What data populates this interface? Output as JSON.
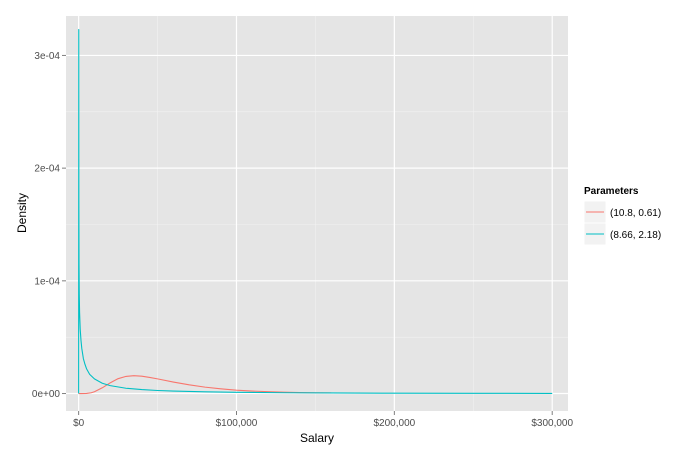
{
  "chart_data": {
    "type": "line",
    "title": "",
    "xlabel": "Salary",
    "ylabel": "Density",
    "xlim": [
      -8000,
      310000
    ],
    "ylim": [
      -1.55e-05,
      0.000335
    ],
    "x_ticks": [
      0,
      100000,
      200000,
      300000
    ],
    "x_tick_labels": [
      "$0",
      "$100,000",
      "$200,000",
      "$300,000"
    ],
    "x_minor_ticks": [
      50000,
      150000,
      250000
    ],
    "y_ticks": [
      0,
      0.0001,
      0.0002,
      0.0003
    ],
    "y_tick_labels": [
      "0e+00",
      "1e-04",
      "2e-04",
      "3e-04"
    ],
    "y_minor_ticks": [
      5e-05,
      0.00015,
      0.00025
    ],
    "grid": true,
    "legend": {
      "title": "Parameters",
      "position": "right"
    },
    "series": [
      {
        "name": "(10.8, 0.61)",
        "color": "#F8766D",
        "x": [
          0,
          2000,
          5000,
          8000,
          10000,
          15000,
          20000,
          25000,
          30000,
          35000,
          40000,
          45000,
          50000,
          60000,
          70000,
          80000,
          90000,
          100000,
          110000,
          120000,
          130000,
          140000,
          150000,
          160000
        ],
        "y": [
          0,
          1e-08,
          1e-07,
          7e-07,
          1.6e-06,
          5.1e-06,
          9.5e-06,
          1.32e-05,
          1.52e-05,
          1.58e-05,
          1.54e-05,
          1.43e-05,
          1.3e-05,
          1.02e-05,
          7.7e-06,
          5.7e-06,
          4.2e-06,
          3e-06,
          2.2e-06,
          1.6e-06,
          1.2e-06,
          9e-07,
          6e-07,
          5e-07
        ]
      },
      {
        "name": "(8.66, 2.18)",
        "color": "#00BFC4",
        "x": [
          0,
          80,
          150,
          250,
          400,
          600,
          1000,
          1500,
          2000,
          3000,
          4000,
          5000,
          7000,
          10000,
          15000,
          20000,
          30000,
          40000,
          50000,
          60000,
          80000,
          100000,
          130000,
          160000,
          200000,
          250000,
          300000
        ],
        "y": [
          0,
          0.000323,
          0.00017,
          0.000115,
          8.8e-05,
          7.2e-05,
          5.7e-05,
          4.7e-05,
          4e-05,
          3.1e-05,
          2.6e-05,
          2.2e-05,
          1.7e-05,
          1.3e-05,
          9.1e-06,
          7e-06,
          4.7e-06,
          3.5e-06,
          2.7e-06,
          2.2e-06,
          1.5e-06,
          1.1e-06,
          7e-07,
          5e-07,
          3e-07,
          2e-07,
          1e-07
        ]
      }
    ]
  }
}
